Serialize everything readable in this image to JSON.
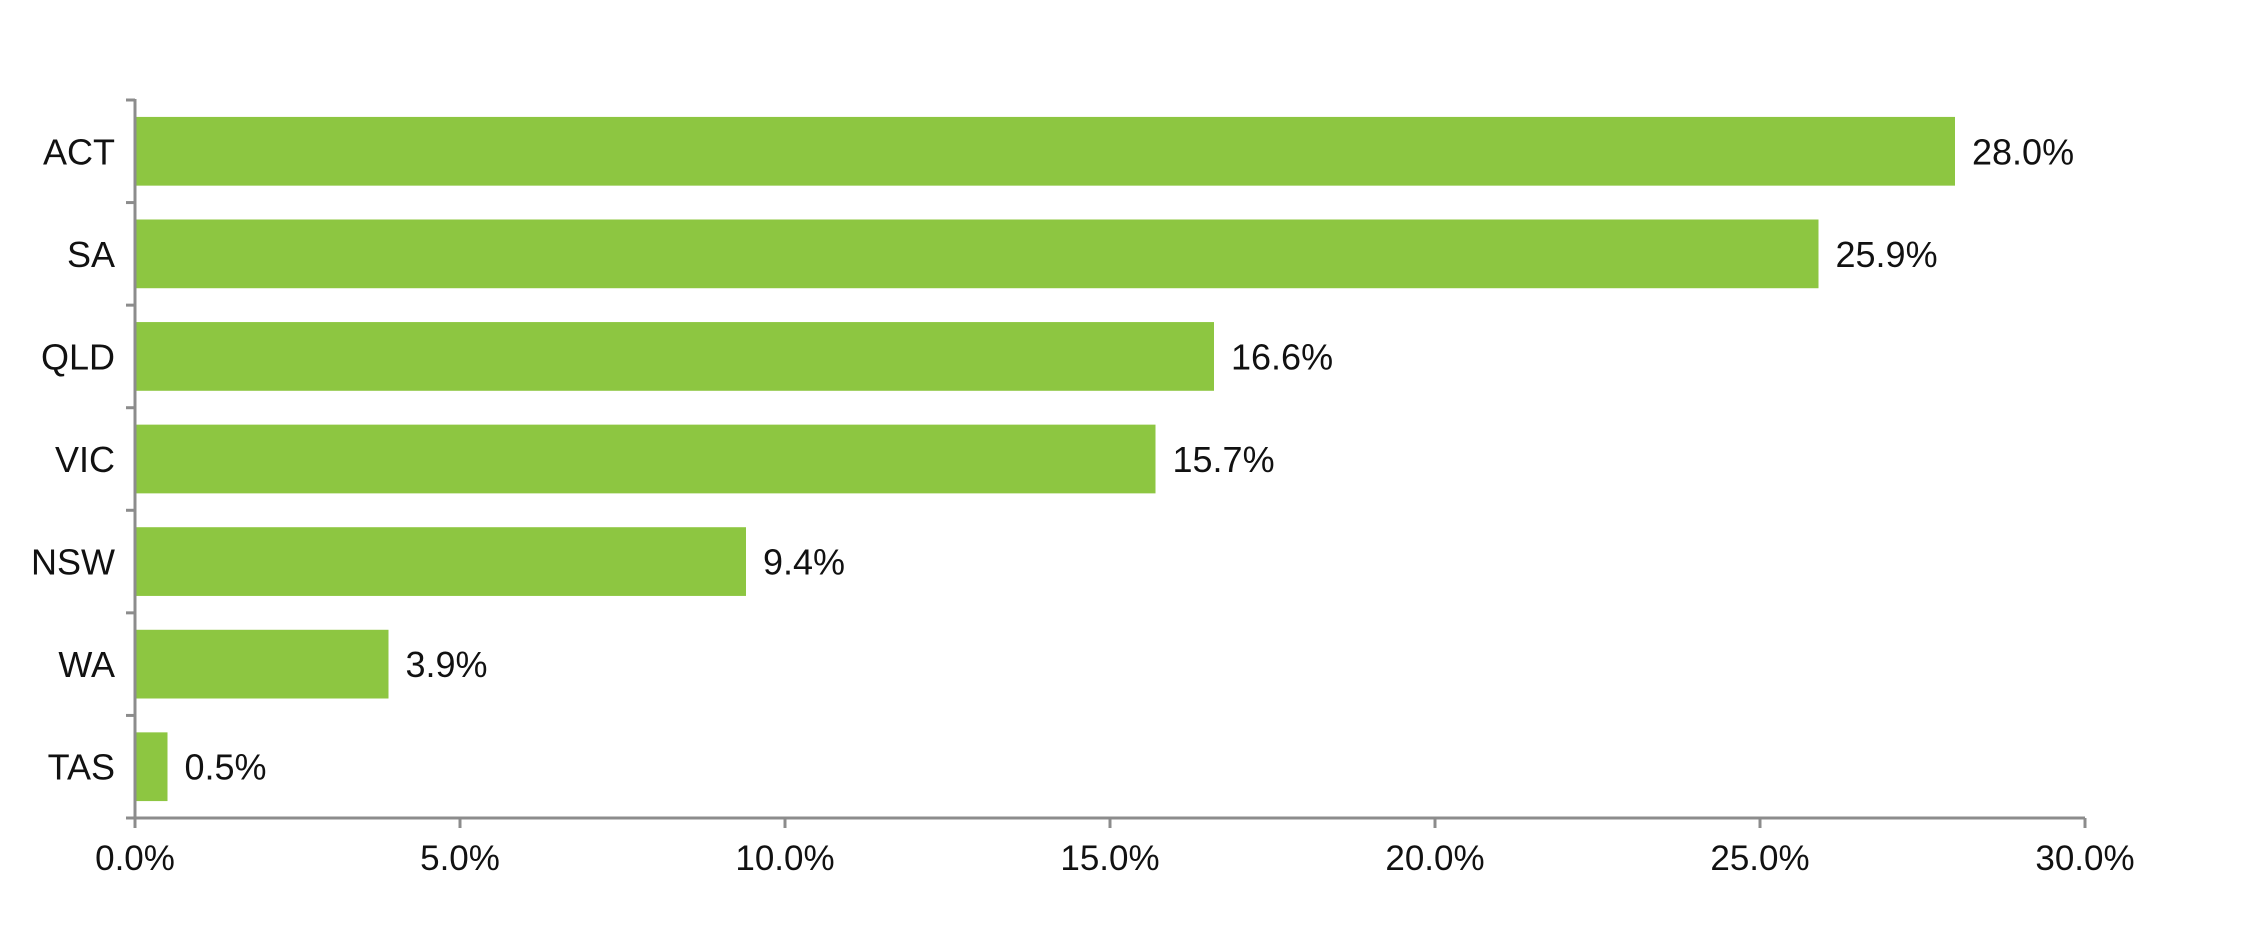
{
  "chart_data": {
    "type": "bar",
    "orientation": "horizontal",
    "categories": [
      "ACT",
      "SA",
      "QLD",
      "VIC",
      "NSW",
      "WA",
      "TAS"
    ],
    "values": [
      28.0,
      25.9,
      16.6,
      15.7,
      9.4,
      3.9,
      0.5
    ],
    "data_labels": [
      "28.0%",
      "25.9%",
      "16.6%",
      "15.7%",
      "9.4%",
      "3.9%",
      "0.5%"
    ],
    "x_ticks": [
      0,
      5,
      10,
      15,
      20,
      25,
      30
    ],
    "x_tick_labels": [
      "0.0%",
      "5.0%",
      "10.0%",
      "15.0%",
      "20.0%",
      "25.0%",
      "30.0%"
    ],
    "xlim": [
      0,
      30
    ],
    "title": "",
    "xlabel": "",
    "ylabel": "",
    "grid": false,
    "legend": "none",
    "colors": {
      "bar": "#8dc641",
      "axis": "#8c8c8c",
      "text": "#111111"
    }
  }
}
